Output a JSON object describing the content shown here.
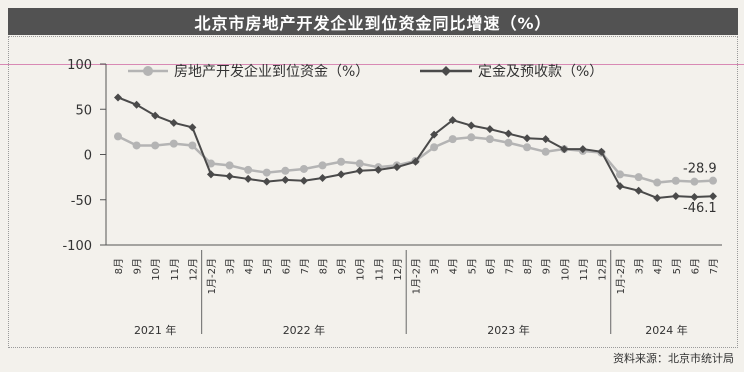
{
  "title": "北京市房地产开发企业到位资金同比增速（%）",
  "source": "资料来源：北京市统计局",
  "chart_data": {
    "type": "line",
    "ylim": [
      -100,
      100
    ],
    "yticks": [
      100,
      50,
      0,
      -50,
      -100
    ],
    "categories": [
      "8月",
      "9月",
      "10月",
      "11月",
      "12月",
      "1月-2月",
      "3月",
      "4月",
      "5月",
      "6月",
      "7月",
      "8月",
      "9月",
      "10月",
      "11月",
      "12月",
      "1月-2月",
      "3月",
      "4月",
      "5月",
      "6月",
      "7月",
      "8月",
      "9月",
      "10月",
      "11月",
      "12月",
      "1月-2月",
      "3月",
      "4月",
      "5月",
      "6月",
      "7月"
    ],
    "year_labels": [
      {
        "text": "2021 年",
        "start": 0,
        "end": 4
      },
      {
        "text": "2022 年",
        "start": 5,
        "end": 15
      },
      {
        "text": "2023 年",
        "start": 16,
        "end": 26
      },
      {
        "text": "2024 年",
        "start": 27,
        "end": 32
      }
    ],
    "series": [
      {
        "name": "房地产开发企业到位资金（%）",
        "color": "#b4b4b4",
        "values": [
          20,
          10,
          10,
          12,
          10,
          -10,
          -12,
          -17,
          -20,
          -18,
          -16,
          -12,
          -8,
          -10,
          -14,
          -12,
          -7,
          8,
          17,
          19,
          17,
          13,
          8,
          3,
          6,
          4,
          2,
          -22,
          -25,
          -31,
          -29,
          -30,
          -28.9
        ]
      },
      {
        "name": "定金及预收款（%）",
        "color": "#4a4a4a",
        "values": [
          63,
          55,
          43,
          35,
          30,
          -22,
          -24,
          -27,
          -30,
          -28,
          -29,
          -26,
          -22,
          -18,
          -17,
          -14,
          -8,
          22,
          38,
          32,
          28,
          23,
          18,
          17,
          6,
          6,
          3,
          -35,
          -40,
          -48,
          -46,
          -47,
          -46.1
        ]
      }
    ],
    "annotations": [
      "-28.9",
      "-46.1"
    ],
    "legend_position": "top-center"
  }
}
